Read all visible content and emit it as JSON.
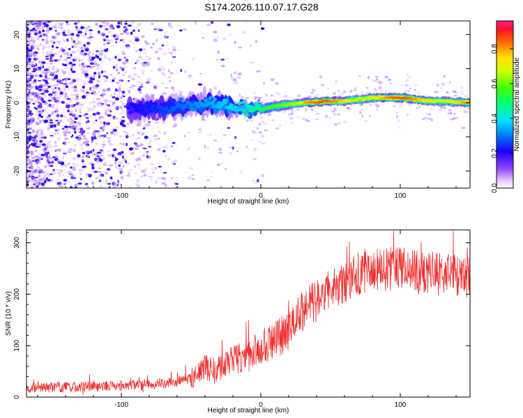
{
  "title": "S174.2026.110.07.17.G28",
  "chart_data": [
    {
      "type": "heatmap",
      "name": "spectrogram",
      "xlabel": "Height of straight line (km)",
      "ylabel": "Frequency (Hz)",
      "xlim": [
        -168,
        150
      ],
      "ylim": [
        -25,
        24
      ],
      "xticks": [
        -100,
        0,
        100
      ],
      "yticks": [
        -20,
        -10,
        0,
        10,
        20
      ],
      "colorbar": {
        "label": "Normalized spectral amplitude",
        "range": [
          0,
          0.96
        ],
        "ticks": [
          0.0,
          0.2,
          0.4,
          0.6,
          0.8
        ],
        "tick_labels": [
          "0.0",
          "0.2",
          "0.4",
          "0.6",
          "0.8"
        ]
      },
      "ridge": {
        "x": [
          -90,
          -70,
          -50,
          -35,
          -20,
          0,
          10,
          20,
          30,
          40,
          50,
          60,
          70,
          80,
          90,
          100,
          110,
          120,
          130,
          140,
          150
        ],
        "y": [
          -2,
          -1.5,
          -1,
          0,
          -1.5,
          -2,
          -1,
          -0.5,
          0,
          0.2,
          0.5,
          0.5,
          1,
          1.5,
          1.5,
          1.5,
          1,
          0.5,
          0.5,
          0.2,
          0
        ]
      }
    },
    {
      "type": "line",
      "name": "snr",
      "xlabel": "Height of straight line (km)",
      "ylabel": "SNR (10 * v/v)",
      "xlim": [
        -168,
        150
      ],
      "ylim": [
        0,
        325
      ],
      "xticks": [
        -100,
        0,
        100
      ],
      "yticks": [
        0,
        100,
        200,
        300
      ],
      "color": "#f03030",
      "series": [
        {
          "name": "SNR",
          "envelope_x": [
            -168,
            -130,
            -100,
            -80,
            -60,
            -50,
            -45,
            -40,
            -35,
            -30,
            -20,
            -10,
            0,
            10,
            20,
            30,
            40,
            50,
            60,
            70,
            80,
            90,
            100,
            110,
            120,
            130,
            140,
            150
          ],
          "envelope_y": [
            18,
            20,
            22,
            25,
            30,
            35,
            45,
            60,
            50,
            55,
            70,
            80,
            95,
            110,
            130,
            165,
            190,
            210,
            225,
            240,
            250,
            248,
            250,
            245,
            240,
            238,
            235,
            235
          ]
        }
      ]
    }
  ]
}
